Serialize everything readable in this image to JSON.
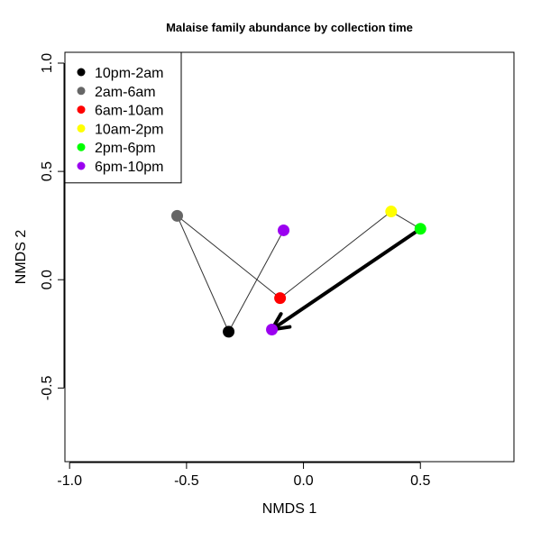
{
  "chart_data": {
    "type": "scatter",
    "title": "Malaise family abundance by collection time",
    "xlabel": "NMDS 1",
    "ylabel": "NMDS 2",
    "xlim": [
      -1.02,
      0.9
    ],
    "ylim": [
      -0.84,
      1.05
    ],
    "x_ticks": [
      -1.0,
      -0.5,
      0.0,
      0.5
    ],
    "x_tick_labels": [
      "-1.0",
      "-0.5",
      "0.0",
      "0.5"
    ],
    "y_ticks": [
      -0.5,
      0.0,
      0.5,
      1.0
    ],
    "y_tick_labels": [
      "-0.5",
      "0.0",
      "0.5",
      "1.0"
    ],
    "grid": false,
    "legend_position": "top-left",
    "series": [
      {
        "name": "10pm-2am",
        "color": "#000000",
        "x": -0.32,
        "y": -0.24
      },
      {
        "name": "2am-6am",
        "color": "#666666",
        "x": -0.54,
        "y": 0.295
      },
      {
        "name": "6am-10am",
        "color": "#ff0000",
        "x": -0.1,
        "y": -0.085
      },
      {
        "name": "10am-2pm",
        "color": "#ffff00",
        "x": 0.375,
        "y": 0.315
      },
      {
        "name": "2pm-6pm",
        "color": "#00ff00",
        "x": 0.5,
        "y": 0.235
      },
      {
        "name": "6pm-10pm",
        "color": "#9b00f0",
        "x": -0.135,
        "y": -0.23
      }
    ],
    "extra_points": [
      {
        "series": "6pm-10pm",
        "color": "#9b00f0",
        "x": -0.085,
        "y": 0.228
      }
    ],
    "path": [
      [
        -0.085,
        0.228
      ],
      [
        -0.32,
        -0.24
      ],
      [
        -0.54,
        0.295
      ],
      [
        -0.1,
        -0.085
      ],
      [
        0.375,
        0.315
      ],
      [
        0.5,
        0.235
      ]
    ],
    "arrow": {
      "from": [
        0.5,
        0.235
      ],
      "to": [
        -0.135,
        -0.23
      ]
    }
  }
}
